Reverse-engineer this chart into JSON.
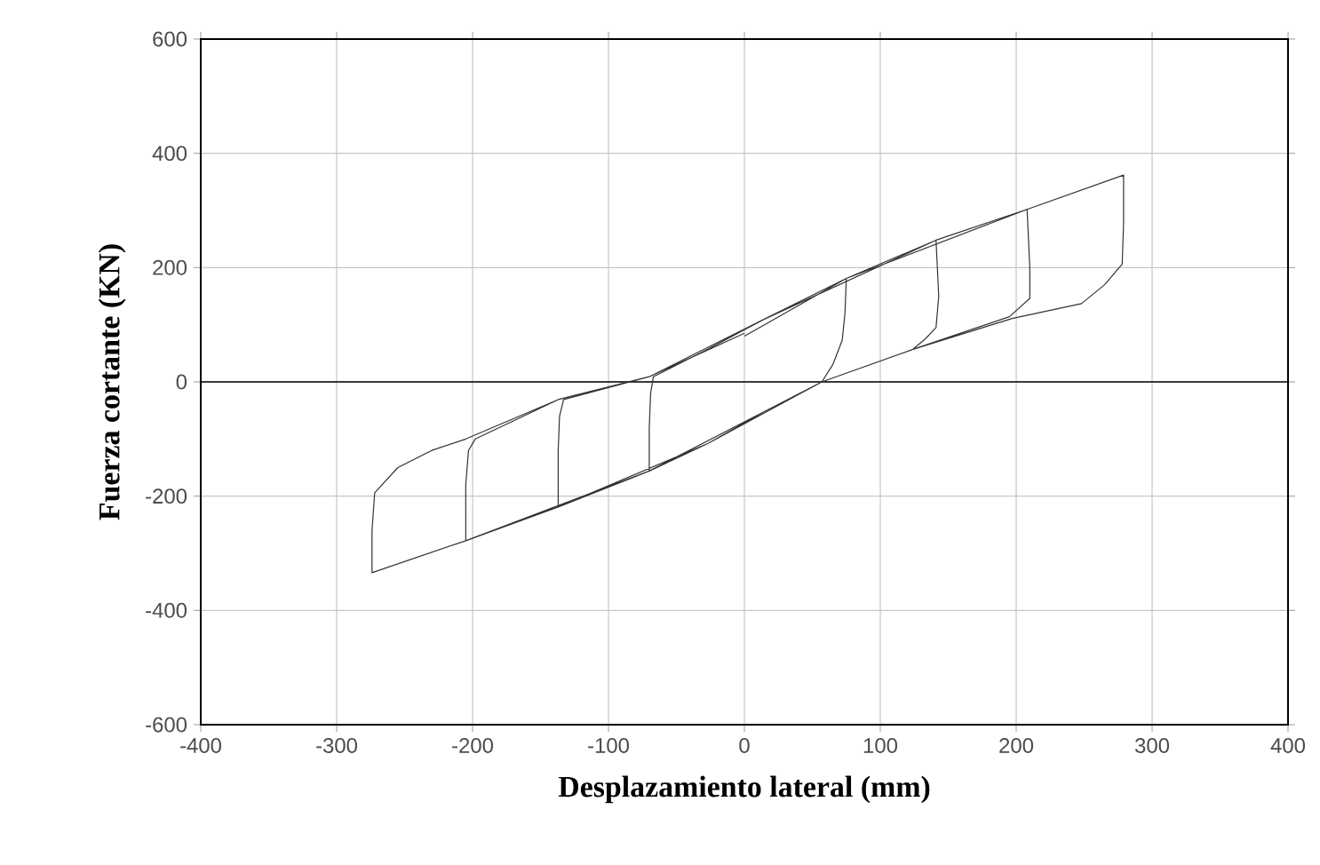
{
  "chart_data": {
    "type": "line",
    "xlabel": "Desplazamiento lateral (mm)",
    "ylabel": "Fuerza cortante (KN)",
    "xlim": [
      -400,
      400
    ],
    "ylim": [
      -600,
      600
    ],
    "xticks": [
      -400,
      -300,
      -200,
      -100,
      0,
      100,
      200,
      300,
      400
    ],
    "yticks": [
      -600,
      -400,
      -200,
      0,
      200,
      400,
      600
    ],
    "grid": true,
    "marker": "none",
    "line_style": "solid",
    "series": [
      {
        "color": "#333333",
        "x": [
          0,
          75,
          74,
          72,
          65,
          57,
          14,
          -27,
          -70,
          -70,
          -69,
          -67,
          -27,
          14,
          75,
          141,
          143,
          141,
          133,
          124,
          57,
          14,
          -70,
          -137,
          -137,
          -136,
          -133,
          -70,
          14,
          141,
          208,
          210,
          210,
          195,
          124,
          57,
          -27,
          -137,
          -205,
          -205,
          -203,
          -198,
          -137,
          -70,
          14,
          75,
          208,
          279,
          279,
          278,
          265,
          248,
          197,
          124,
          57,
          -70,
          -205,
          -274,
          -274,
          -272,
          -255,
          -230,
          -205,
          -137,
          -70,
          0
        ],
        "values": [
          80,
          181,
          120,
          73,
          30,
          0,
          -53,
          -108,
          -156,
          -80,
          -20,
          9,
          57,
          109,
          181,
          248,
          150,
          95,
          75,
          57,
          0,
          -53,
          -156,
          -219,
          -120,
          -60,
          -31,
          9,
          109,
          248,
          302,
          200,
          146,
          114,
          57,
          0,
          -108,
          -219,
          -278,
          -180,
          -120,
          -100,
          -31,
          9,
          109,
          181,
          302,
          362,
          280,
          206,
          170,
          137,
          111,
          57,
          0,
          -156,
          -278,
          -334,
          -260,
          -194,
          -150,
          -120,
          -100,
          -31,
          9,
          85
        ]
      }
    ]
  }
}
